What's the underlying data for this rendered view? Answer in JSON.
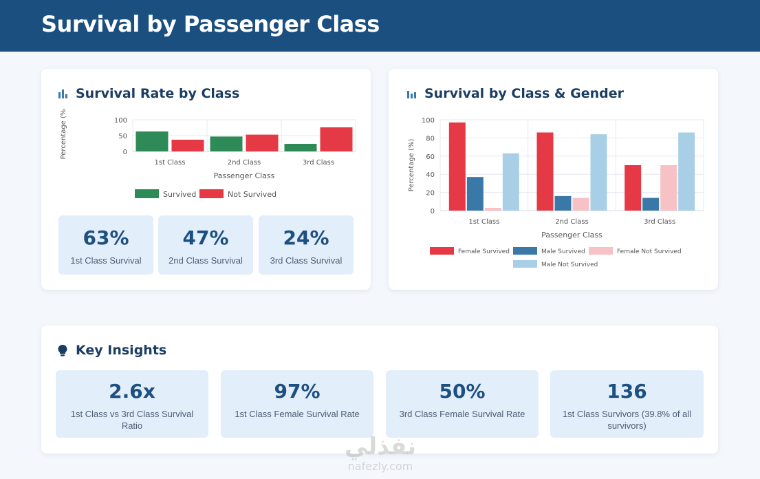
{
  "header": {
    "title": "Survival by Passenger Class"
  },
  "cards": {
    "rate_title": "Survival Rate by Class",
    "gender_title": "Survival by Class & Gender",
    "insights_title": "Key Insights"
  },
  "chart_data": [
    {
      "type": "bar",
      "title": "Survival Rate by Class",
      "categories": [
        "1st Class",
        "2nd Class",
        "3rd Class"
      ],
      "series": [
        {
          "name": "Survived",
          "values": [
            63,
            47,
            24
          ],
          "color": "#2e8b57"
        },
        {
          "name": "Not Survived",
          "values": [
            37,
            53,
            76
          ],
          "color": "#e63946"
        }
      ],
      "xlabel": "Passenger Class",
      "ylabel": "Percentage (%",
      "ylim": [
        0,
        100
      ],
      "yticks": [
        "0",
        "50",
        "100"
      ],
      "grid": true,
      "legend": "bottom"
    },
    {
      "type": "bar",
      "title": "Survival by Class & Gender",
      "categories": [
        "1st Class",
        "2nd Class",
        "3rd Class"
      ],
      "series": [
        {
          "name": "Female Survived",
          "values": [
            97,
            86,
            50
          ],
          "color": "#e63946"
        },
        {
          "name": "Male Survived",
          "values": [
            37,
            16,
            14
          ],
          "color": "#3a78a8"
        },
        {
          "name": "Female Not Survived",
          "values": [
            3,
            14,
            50
          ],
          "color": "#f7c2c5"
        },
        {
          "name": "Male Not Survived",
          "values": [
            63,
            84,
            86
          ],
          "color": "#a9cfe6"
        }
      ],
      "xlabel": "Passenger Class",
      "ylabel": "Percentage (%)",
      "ylim": [
        0,
        100
      ],
      "yticks": [
        "0",
        "20",
        "40",
        "60",
        "80",
        "100"
      ],
      "grid": true,
      "legend": "bottom"
    }
  ],
  "class_stats": [
    {
      "value": "63%",
      "label": "1st Class Survival",
      "color": "#1d4f80"
    },
    {
      "value": "47%",
      "label": "2nd Class Survival",
      "color": "#2f6ea3"
    },
    {
      "value": "24%",
      "label": "3rd Class Survival",
      "color": "#5aa7db"
    }
  ],
  "insights": [
    {
      "value": "2.6x",
      "label": "1st Class vs 3rd Class Survival Ratio"
    },
    {
      "value": "97%",
      "label": "1st Class Female Survival Rate"
    },
    {
      "value": "50%",
      "label": "3rd Class Female Survival Rate"
    },
    {
      "value": "136",
      "label": "1st Class Survivors (39.8% of all survivors)"
    }
  ],
  "watermark": {
    "arabic": "نفذلي",
    "latin": "nafezly.com"
  }
}
